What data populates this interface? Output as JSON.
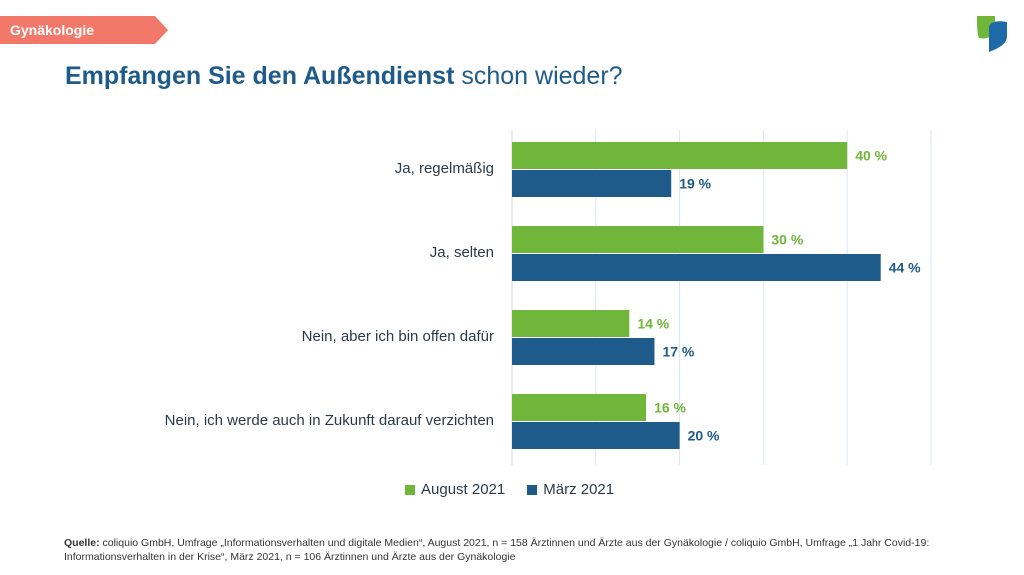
{
  "header": {
    "tag_label": "Gynäkologie",
    "tag_color": "#f2786a"
  },
  "logo": {
    "name": "leaf-logo-icon",
    "colors": [
      "#6fb63a",
      "#1e6aa8"
    ]
  },
  "title": {
    "bold_part": "Empfangen Sie den Außendienst",
    "regular_part": " schon wieder?"
  },
  "chart_data": {
    "type": "bar",
    "orientation": "horizontal",
    "categories": [
      "Ja, regelmäßig",
      "Ja, selten",
      "Nein, aber ich bin offen dafür",
      "Nein, ich werde auch in Zukunft darauf verzichten"
    ],
    "series": [
      {
        "name": "August 2021",
        "color": "#6fb63a",
        "values": [
          40,
          30,
          14,
          16
        ]
      },
      {
        "name": "März 2021",
        "color": "#1e5b8a",
        "values": [
          19,
          44,
          17,
          20
        ]
      }
    ],
    "value_labels": [
      [
        "40 %",
        "30 %",
        "14 %",
        "16 %"
      ],
      [
        "19 %",
        "44 %",
        "17 %",
        "20 %"
      ]
    ],
    "xlim": [
      0,
      50
    ],
    "grid": true,
    "legend_position": "bottom"
  },
  "legend": {
    "items": [
      {
        "label": "August 2021",
        "color": "#6fb63a"
      },
      {
        "label": "März 2021",
        "color": "#1e5b8a"
      }
    ]
  },
  "source": {
    "label": "Quelle:",
    "text": " coliquio GmbH, Umfrage „Informationsverhalten und digitale Medien“, August 2021, n = 158 Ärztinnen und Ärzte aus der Gynäkologie / coliquio GmbH, Umfrage „1 Jahr Covid-19: Informationsverhalten in der Krise“, März 2021, n = 106 Ärztinnen und Ärzte aus der Gynäkologie"
  }
}
